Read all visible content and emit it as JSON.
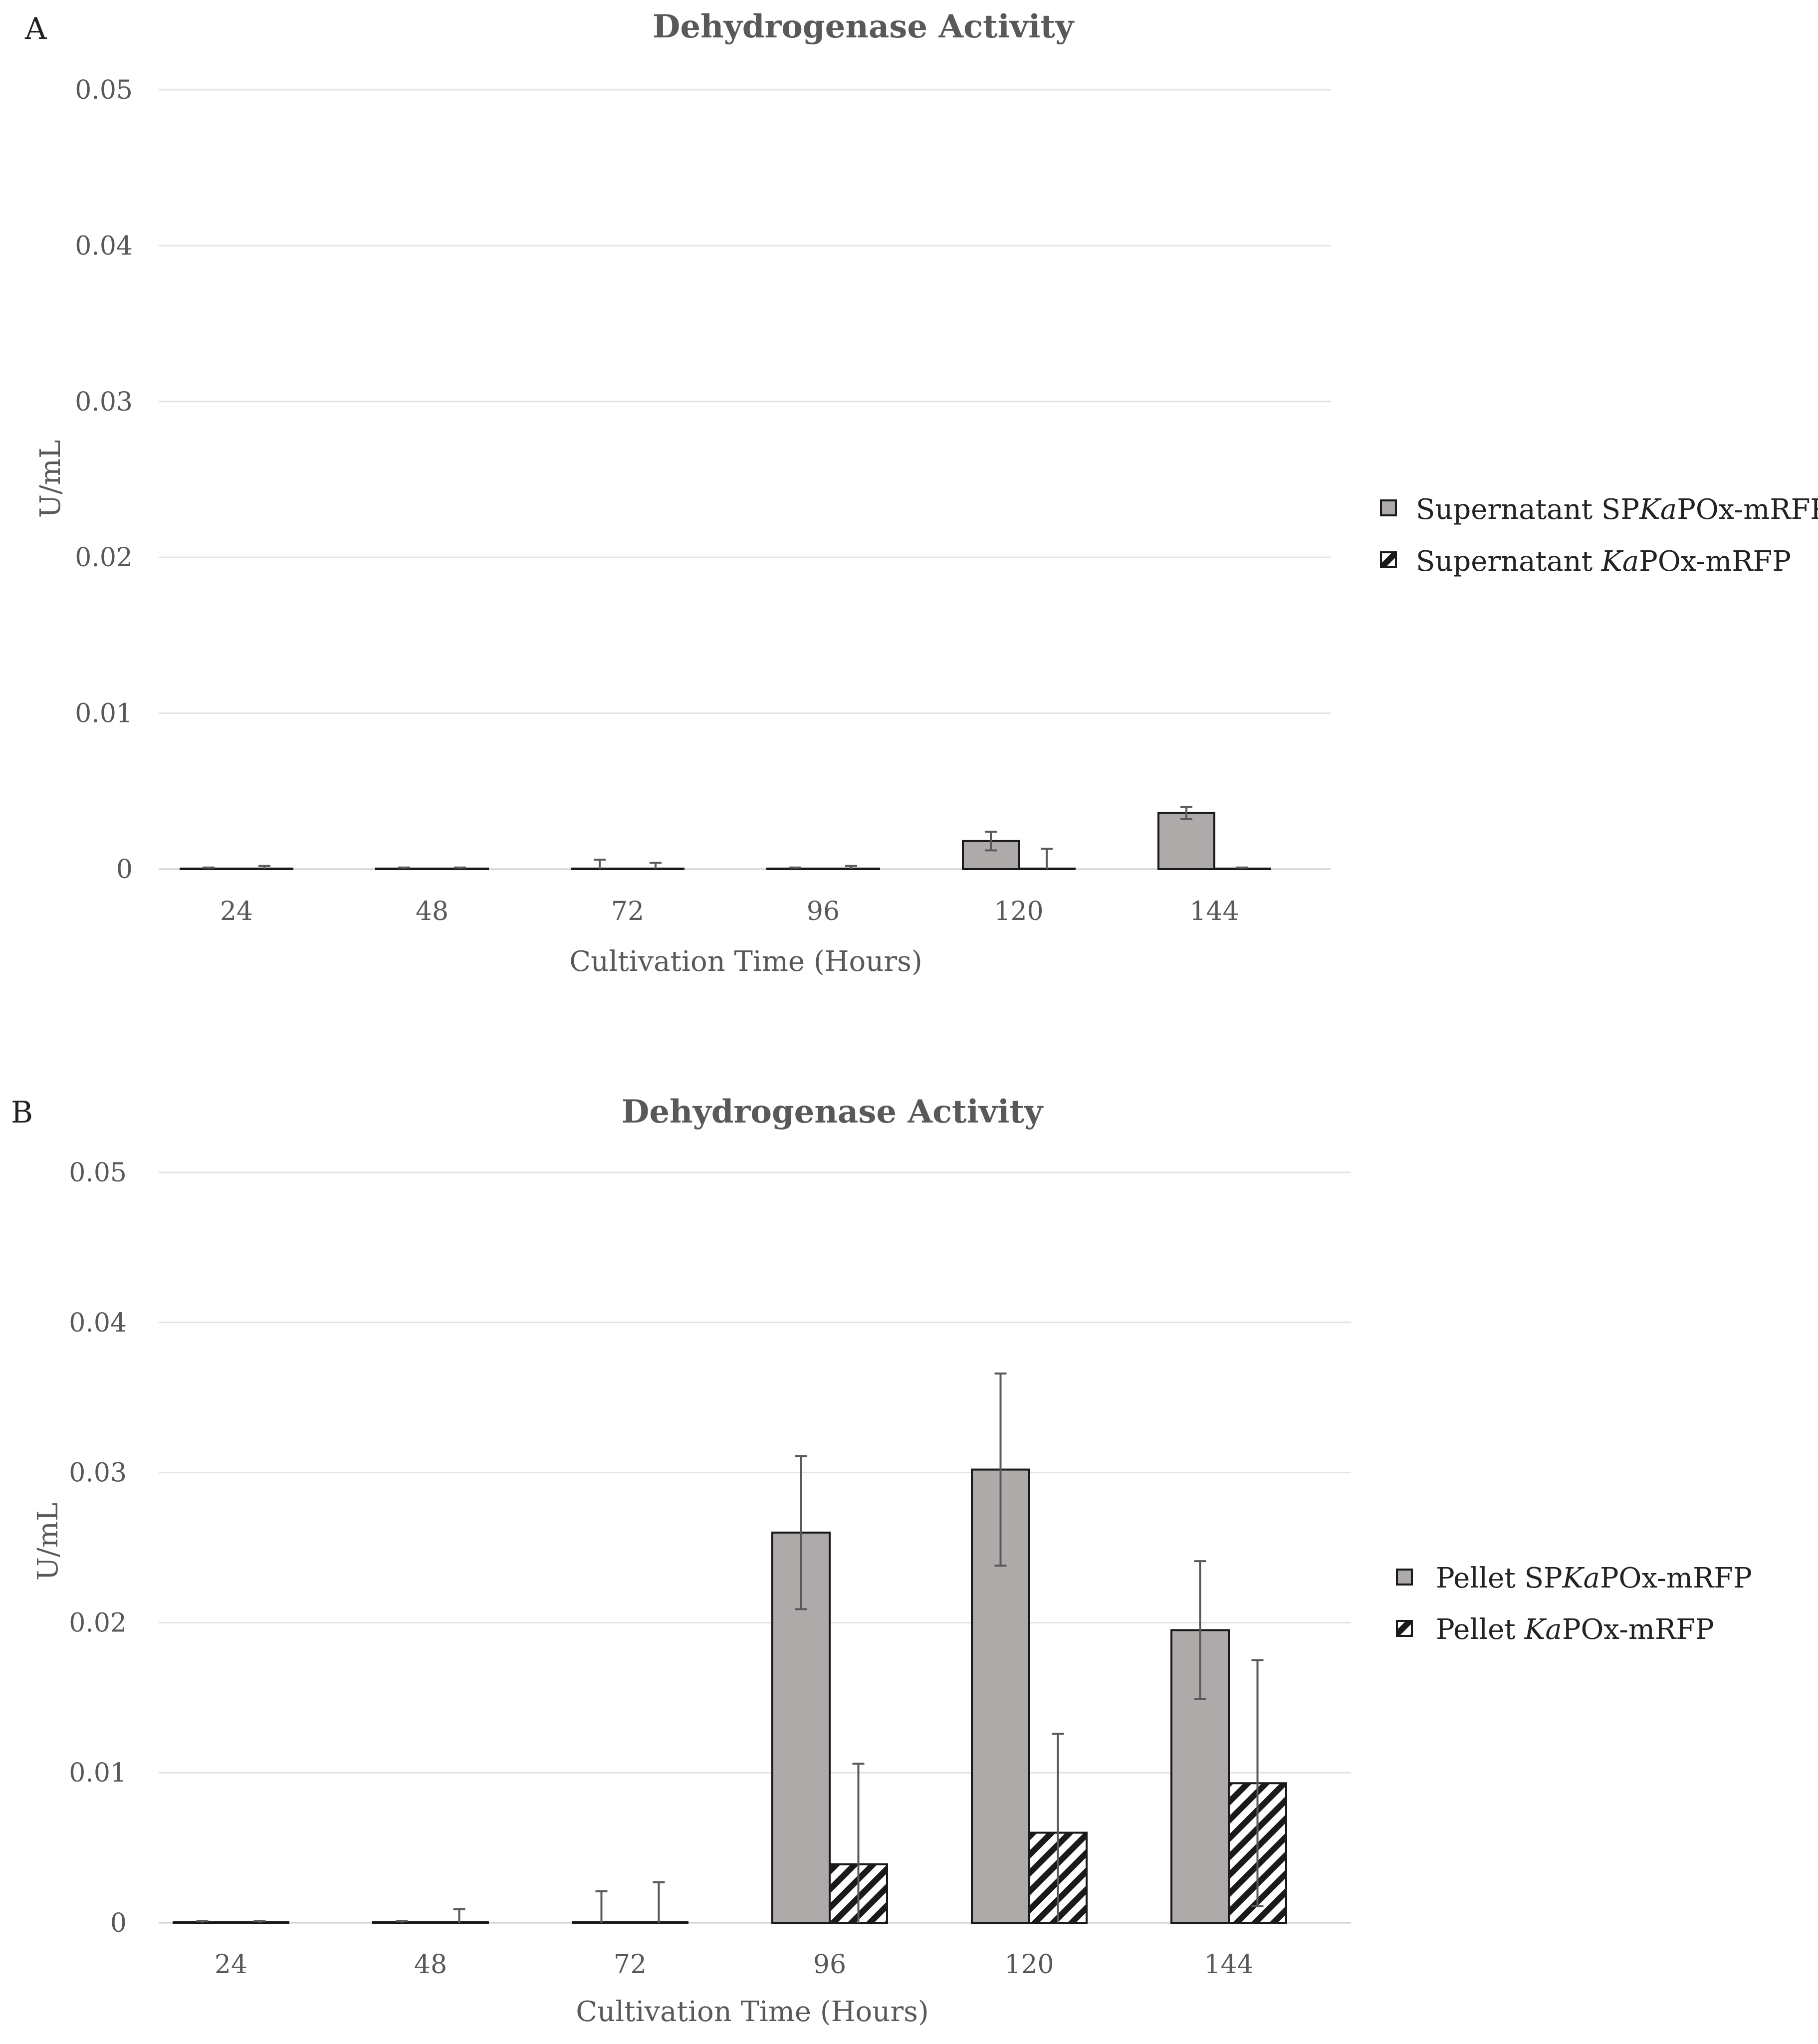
{
  "chart_data": [
    {
      "type": "bar",
      "panel": "A",
      "title": "Dehydrogenase Activity",
      "xlabel": "Cultivation Time (Hours)",
      "ylabel": "U/mL",
      "ylim": [
        0,
        0.05
      ],
      "yticks": [
        "0",
        "0.01",
        "0.02",
        "0.03",
        "0.04",
        "0.05"
      ],
      "categories": [
        "24",
        "48",
        "72",
        "96",
        "120",
        "144"
      ],
      "legend_position": "right",
      "series": [
        {
          "name": "Supernatant SPKaPOx-mRFP",
          "legend_parts": [
            "Supernatant SP",
            "Ka",
            "POx-mRFP"
          ],
          "style": "solid",
          "values": [
            0,
            0,
            0,
            0,
            0.0018,
            0.0036
          ],
          "errors": [
            0.0001,
            0.0001,
            0.0006,
            0.0001,
            0.0006,
            0.0004
          ]
        },
        {
          "name": "Supernatant KaPOx-mRFP",
          "legend_parts": [
            "Supernatant ",
            "Ka",
            "POx-mRFP"
          ],
          "style": "hatch",
          "values": [
            0,
            0,
            0,
            0,
            0,
            0
          ],
          "errors": [
            0.0002,
            0.0001,
            0.0004,
            0.0002,
            0.0013,
            0.0001
          ]
        }
      ]
    },
    {
      "type": "bar",
      "panel": "B",
      "title": "Dehydrogenase Activity",
      "xlabel": "Cultivation Time (Hours)",
      "ylabel": "U/mL",
      "ylim": [
        0,
        0.05
      ],
      "yticks": [
        "0",
        "0.01",
        "0.02",
        "0.03",
        "0.04",
        "0.05"
      ],
      "categories": [
        "24",
        "48",
        "72",
        "96",
        "120",
        "144"
      ],
      "legend_position": "right",
      "series": [
        {
          "name": "Pellet SPKaPOx-mRFP",
          "legend_parts": [
            "Pellet SP",
            "Ka",
            "POx-mRFP"
          ],
          "style": "solid",
          "values": [
            0,
            0,
            0,
            0.026,
            0.0302,
            0.0195
          ],
          "errors": [
            0.0001,
            0.0001,
            0.0021,
            0.0051,
            0.0064,
            0.0046
          ]
        },
        {
          "name": "Pellet KaPOx-mRFP",
          "legend_parts": [
            "Pellet ",
            "Ka",
            "POx-mRFP"
          ],
          "style": "hatch",
          "values": [
            0,
            0,
            0,
            0.0039,
            0.006,
            0.0093
          ],
          "errors": [
            0.0001,
            0.0009,
            0.0027,
            0.0067,
            0.0066,
            0.0082
          ]
        }
      ]
    }
  ]
}
